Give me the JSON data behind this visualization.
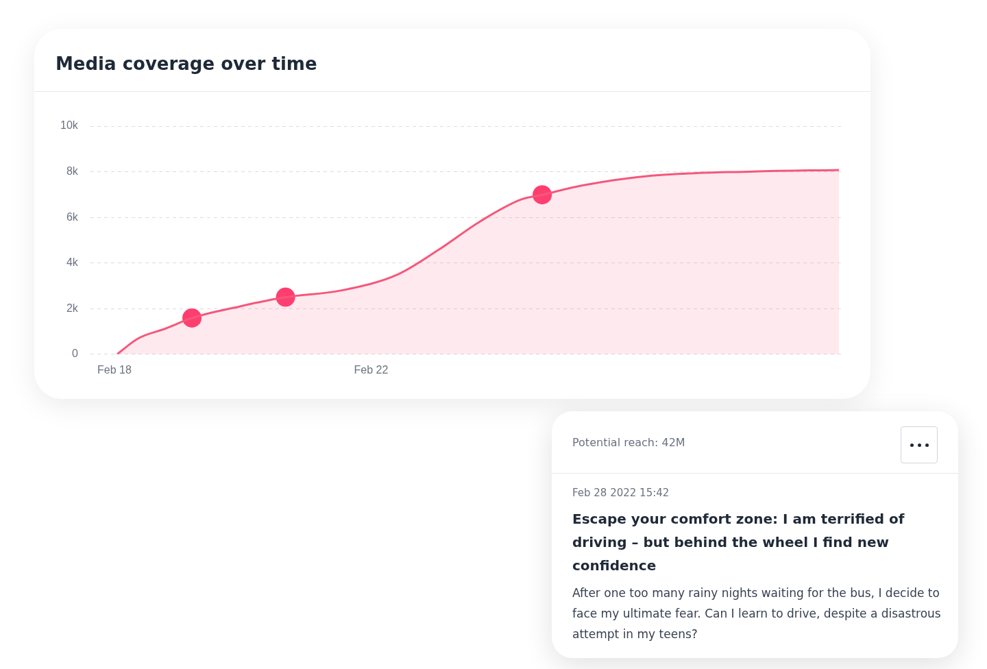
{
  "chart_data": {
    "type": "line",
    "title": "Media coverage over time",
    "series": [
      {
        "color": "#f5577c",
        "marker": "none",
        "x": [
          "--02-18T01:00",
          "--02-18T09:00",
          "--02-18T19:00",
          "--02-19T05:00",
          "--02-19T23:00",
          "--02-20T16:00",
          "--02-21T13:00",
          "--02-22T10:00",
          "--02-23T01:00",
          "--02-23T17:00",
          "--02-24T08:00",
          "--02-24T16:00",
          "--02-25T07:00",
          "--02-26T09:00",
          "--02-27T23:00",
          "--03-01T07:00"
        ],
        "values": [
          0,
          700,
          1120,
          1590,
          2100,
          2500,
          2800,
          3500,
          4560,
          5840,
          6780,
          6990,
          7400,
          7830,
          8010,
          8080
        ]
      },
      {
        "type": "scatter",
        "color": "#ff3d6e",
        "marker": "circle",
        "x": [
          "--02-19T05:00",
          "--02-20T16:00",
          "--02-24T16:00"
        ],
        "values": [
          1590,
          2500,
          6990
        ]
      }
    ],
    "xlim": [
      "--02-17T15:00",
      "--03-01T08:00"
    ],
    "xticks": [
      {
        "value": "--02-18",
        "label": "Feb 18"
      },
      {
        "value": "--02-22",
        "label": "Feb 22"
      }
    ],
    "ylim": [
      0,
      10000
    ],
    "yticks": [
      {
        "value": 0,
        "label": "0"
      },
      {
        "value": 2000,
        "label": "2k"
      },
      {
        "value": 4000,
        "label": "4k"
      },
      {
        "value": 6000,
        "label": "6k"
      },
      {
        "value": 8000,
        "label": "8k"
      },
      {
        "value": 10000,
        "label": "10k"
      }
    ],
    "grid": "y",
    "legend": false,
    "annotations": [
      "Potential reach: 42M",
      "Feb 28 2022 15:42",
      "Escape your comfort zone: I am terrified of driving – but behind the wheel I find new confidence",
      "After one too many rainy nights waiting for the bus, I decide to face my ultimate fear. Can I learn to drive, despite a disastrous attempt in my teens?"
    ]
  }
}
